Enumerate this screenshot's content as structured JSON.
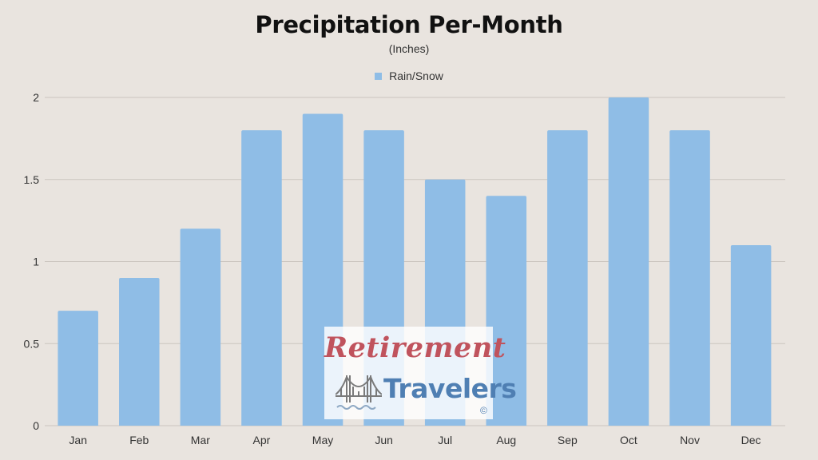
{
  "chart_data": {
    "type": "bar",
    "title": "Precipitation Per-Month",
    "subtitle": "(Inches)",
    "xlabel": "",
    "ylabel": "",
    "categories": [
      "Jan",
      "Feb",
      "Mar",
      "Apr",
      "May",
      "Jun",
      "Jul",
      "Aug",
      "Sep",
      "Oct",
      "Nov",
      "Dec"
    ],
    "series": [
      {
        "name": "Rain/Snow",
        "color": "#8fbde6",
        "values": [
          0.7,
          0.9,
          1.2,
          1.8,
          1.9,
          1.8,
          1.5,
          1.4,
          1.8,
          2.0,
          1.8,
          1.1
        ]
      }
    ],
    "ylim": [
      0,
      2
    ],
    "yticks": [
      0,
      0.5,
      1,
      1.5,
      2
    ],
    "ytick_labels": [
      "0",
      "0.5",
      "1",
      "1.5",
      "2"
    ],
    "grid": true,
    "legend_position": "top-center"
  },
  "watermark": {
    "line1": "Retirement",
    "line2": "Travelers",
    "mark": "©",
    "icon": "bridge-icon"
  },
  "colors": {
    "background": "#e9e4df",
    "gridline": "#cbc5bf",
    "bar": "#8fbde6",
    "watermark_red": "#c0535d",
    "watermark_blue": "#4f7fb3"
  }
}
